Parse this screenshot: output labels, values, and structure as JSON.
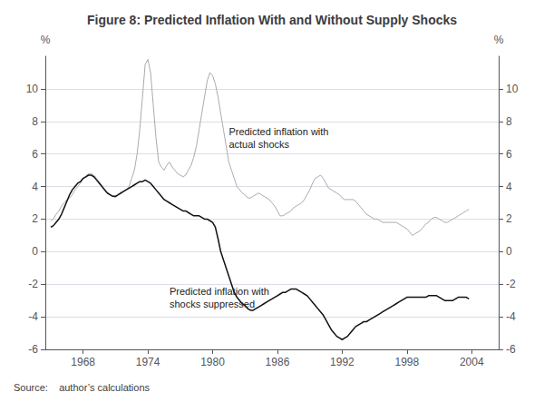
{
  "chart_data": {
    "type": "line",
    "title": "Figure 8: Predicted Inflation With and Without Supply Shocks",
    "source": "Source:    author’s calculations",
    "x": [
      1965,
      1965.25,
      1965.5,
      1965.75,
      1966,
      1966.25,
      1966.5,
      1966.75,
      1967,
      1967.25,
      1967.5,
      1967.75,
      1968,
      1968.25,
      1968.5,
      1968.75,
      1969,
      1969.25,
      1969.5,
      1969.75,
      1970,
      1970.25,
      1970.5,
      1970.75,
      1971,
      1971.25,
      1971.5,
      1971.75,
      1972,
      1972.25,
      1972.5,
      1972.75,
      1973,
      1973.25,
      1973.5,
      1973.75,
      1974,
      1974.25,
      1974.5,
      1974.75,
      1975,
      1975.25,
      1975.5,
      1975.75,
      1976,
      1976.25,
      1976.5,
      1976.75,
      1977,
      1977.25,
      1977.5,
      1977.75,
      1978,
      1978.25,
      1978.5,
      1978.75,
      1979,
      1979.25,
      1979.5,
      1979.75,
      1980,
      1980.25,
      1980.5,
      1980.75,
      1981,
      1981.25,
      1981.5,
      1981.75,
      1982,
      1982.25,
      1982.5,
      1982.75,
      1983,
      1983.25,
      1983.5,
      1983.75,
      1984,
      1984.25,
      1984.5,
      1984.75,
      1985,
      1985.25,
      1985.5,
      1985.75,
      1986,
      1986.25,
      1986.5,
      1986.75,
      1987,
      1987.25,
      1987.5,
      1987.75,
      1988,
      1988.25,
      1988.5,
      1988.75,
      1989,
      1989.25,
      1989.5,
      1989.75,
      1990,
      1990.25,
      1990.5,
      1990.75,
      1991,
      1991.25,
      1991.5,
      1991.75,
      1992,
      1992.25,
      1992.5,
      1992.75,
      1993,
      1993.25,
      1993.5,
      1993.75,
      1994,
      1994.25,
      1994.5,
      1994.75,
      1995,
      1995.25,
      1995.5,
      1995.75,
      1996,
      1996.25,
      1996.5,
      1996.75,
      1997,
      1997.25,
      1997.5,
      1997.75,
      1998,
      1998.25,
      1998.5,
      1998.75,
      1999,
      1999.25,
      1999.5,
      1999.75,
      2000,
      2000.25,
      2000.5,
      2000.75,
      2001,
      2001.25,
      2001.5,
      2001.75,
      2002,
      2002.25,
      2002.5,
      2002.75,
      2003,
      2003.25,
      2003.5,
      2003.75
    ],
    "series": [
      {
        "color": "#aaaaaa",
        "values": [
          1.9,
          2.0,
          2.3,
          2.5,
          2.8,
          3.0,
          3.2,
          3.3,
          3.5,
          3.8,
          4.0,
          4.2,
          4.5,
          4.6,
          4.8,
          4.8,
          4.7,
          4.5,
          4.3,
          4.0,
          3.7,
          3.6,
          3.5,
          3.4,
          3.3,
          3.5,
          3.6,
          3.7,
          3.8,
          4.0,
          4.5,
          5.0,
          6.0,
          7.5,
          9.5,
          11.5,
          11.8,
          11.0,
          9.0,
          7.0,
          5.5,
          5.2,
          5.0,
          5.3,
          5.5,
          5.2,
          5.0,
          4.8,
          4.7,
          4.6,
          4.7,
          5.0,
          5.3,
          5.8,
          6.5,
          7.5,
          8.5,
          9.5,
          10.5,
          11.0,
          10.8,
          10.3,
          9.5,
          8.5,
          7.5,
          6.5,
          5.5,
          5.0,
          4.5,
          4.0,
          3.8,
          3.6,
          3.5,
          3.3,
          3.3,
          3.4,
          3.5,
          3.6,
          3.5,
          3.4,
          3.3,
          3.2,
          3.0,
          2.8,
          2.5,
          2.2,
          2.2,
          2.3,
          2.4,
          2.5,
          2.7,
          2.8,
          2.9,
          3.0,
          3.2,
          3.5,
          3.8,
          4.2,
          4.5,
          4.6,
          4.7,
          4.5,
          4.2,
          3.9,
          3.8,
          3.7,
          3.6,
          3.5,
          3.3,
          3.2,
          3.2,
          3.2,
          3.2,
          3.1,
          2.9,
          2.7,
          2.5,
          2.3,
          2.2,
          2.1,
          2.0,
          2.0,
          1.9,
          1.8,
          1.8,
          1.8,
          1.8,
          1.8,
          1.8,
          1.7,
          1.6,
          1.5,
          1.4,
          1.2,
          1.0,
          1.1,
          1.2,
          1.3,
          1.5,
          1.7,
          1.8,
          2.0,
          2.1,
          2.1,
          2.0,
          1.9,
          1.8,
          1.8,
          1.9,
          2.0,
          2.1,
          2.2,
          2.3,
          2.4,
          2.5,
          2.6
        ]
      },
      {
        "color": "#111111",
        "values": [
          1.5,
          1.6,
          1.8,
          2.0,
          2.3,
          2.7,
          3.1,
          3.5,
          3.8,
          4.0,
          4.2,
          4.3,
          4.5,
          4.6,
          4.7,
          4.7,
          4.6,
          4.4,
          4.2,
          4.0,
          3.8,
          3.6,
          3.5,
          3.4,
          3.4,
          3.5,
          3.6,
          3.7,
          3.8,
          3.9,
          4.0,
          4.1,
          4.2,
          4.3,
          4.3,
          4.4,
          4.3,
          4.2,
          4.0,
          3.8,
          3.6,
          3.4,
          3.2,
          3.1,
          3.0,
          2.9,
          2.8,
          2.7,
          2.6,
          2.5,
          2.5,
          2.4,
          2.3,
          2.2,
          2.2,
          2.2,
          2.1,
          2.0,
          2.0,
          1.9,
          1.8,
          1.5,
          0.8,
          0.0,
          -0.5,
          -1.0,
          -1.5,
          -2.0,
          -2.5,
          -2.8,
          -3.0,
          -3.2,
          -3.3,
          -3.5,
          -3.6,
          -3.6,
          -3.5,
          -3.4,
          -3.3,
          -3.2,
          -3.1,
          -3.0,
          -2.9,
          -2.8,
          -2.7,
          -2.6,
          -2.5,
          -2.5,
          -2.4,
          -2.3,
          -2.3,
          -2.3,
          -2.4,
          -2.5,
          -2.6,
          -2.7,
          -2.9,
          -3.1,
          -3.3,
          -3.5,
          -3.7,
          -3.9,
          -4.2,
          -4.5,
          -4.8,
          -5.0,
          -5.2,
          -5.3,
          -5.4,
          -5.3,
          -5.2,
          -5.0,
          -4.8,
          -4.6,
          -4.5,
          -4.4,
          -4.3,
          -4.3,
          -4.2,
          -4.1,
          -4.0,
          -3.9,
          -3.8,
          -3.7,
          -3.6,
          -3.5,
          -3.4,
          -3.3,
          -3.2,
          -3.1,
          -3.0,
          -2.9,
          -2.8,
          -2.8,
          -2.8,
          -2.8,
          -2.8,
          -2.8,
          -2.8,
          -2.8,
          -2.7,
          -2.7,
          -2.7,
          -2.7,
          -2.8,
          -2.9,
          -3.0,
          -3.0,
          -3.0,
          -3.0,
          -2.9,
          -2.8,
          -2.8,
          -2.8,
          -2.8,
          -2.9
        ]
      }
    ],
    "xlim": [
      1964.5,
      2006.5
    ],
    "xticks": [
      1968,
      1974,
      1980,
      1986,
      1992,
      1998,
      2004
    ],
    "ylim": [
      -6,
      12
    ],
    "yticks": [
      -6,
      -4,
      -2,
      0,
      2,
      4,
      6,
      8,
      10
    ],
    "y2lim": [
      -6,
      12
    ],
    "y2ticks": [
      -6,
      -4,
      -2,
      0,
      2,
      4,
      6,
      8,
      10
    ],
    "ylabel": "%",
    "y2label": "%",
    "grid": true,
    "annotations": [
      {
        "text": "Predicted inflation with\nactual shocks",
        "x": 1981.5,
        "y": 7.0
      },
      {
        "text": "Predicted inflation with\nshocks suppressed",
        "x": 1976.0,
        "y": -2.8
      }
    ]
  }
}
